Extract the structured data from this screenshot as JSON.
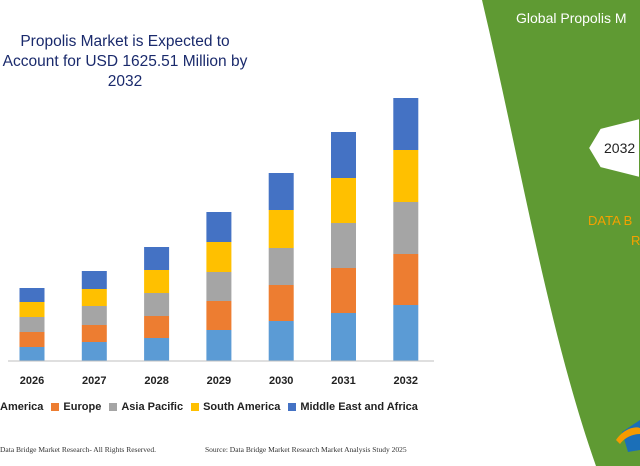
{
  "chart_data": {
    "type": "bar",
    "stacked": true,
    "title": "Propolis Market is Expected to Account for USD 1625.51 Million by 2032",
    "categories": [
      "2026",
      "2027",
      "2028",
      "2029",
      "2030",
      "2031",
      "2032"
    ],
    "series": [
      {
        "name": "America",
        "color": "#5b9bd5",
        "values": [
          14,
          19,
          23,
          31,
          40,
          48,
          56
        ]
      },
      {
        "name": "Europe",
        "color": "#ed7d31",
        "values": [
          15,
          17,
          22,
          29,
          36,
          45,
          51
        ]
      },
      {
        "name": "Asia Pacific",
        "color": "#a5a5a5",
        "values": [
          15,
          19,
          23,
          29,
          37,
          45,
          52
        ]
      },
      {
        "name": "South America",
        "color": "#ffc000",
        "values": [
          15,
          17,
          23,
          30,
          38,
          45,
          52
        ]
      },
      {
        "name": "Middle East and Africa",
        "color": "#4472c4",
        "values": [
          14,
          18,
          23,
          30,
          37,
          46,
          52
        ]
      }
    ],
    "ylim": [
      0,
      265
    ],
    "grid": false,
    "legend_position": "bottom"
  },
  "footer": {
    "copyright": "Data Bridge Market Research-  All Rights Reserved.",
    "source": "Source: Data Bridge Market Research  Market Analysis Study 2025"
  },
  "panel": {
    "title": "Global Propolis M",
    "year": "2032",
    "orange_line1": "DATA B",
    "orange_line2": "R"
  },
  "colors": {
    "panel_green": "#5f9a33",
    "axis": "#bfbfbf"
  }
}
